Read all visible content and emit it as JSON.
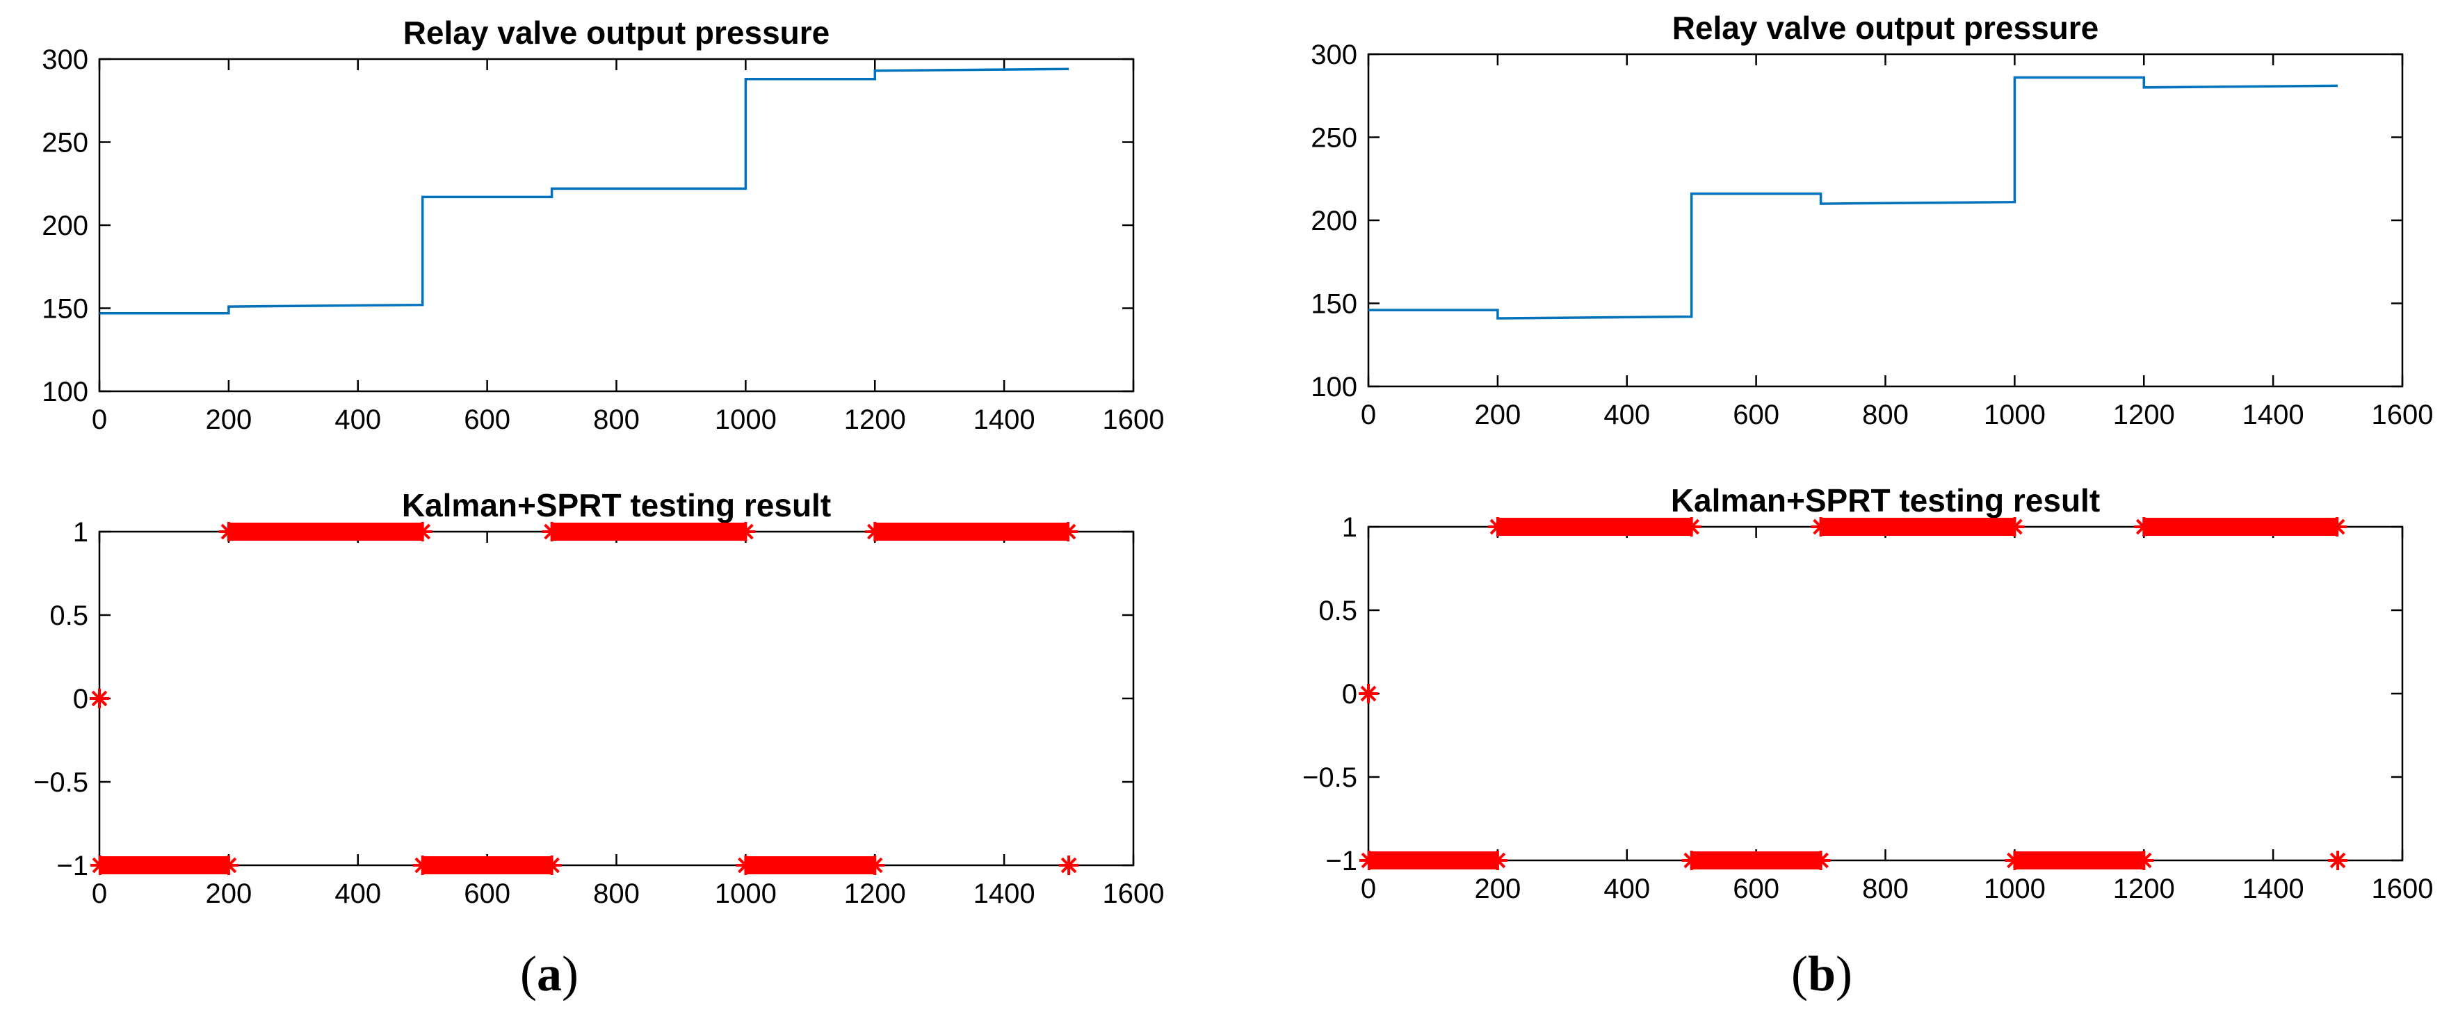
{
  "panels": [
    {
      "label_open": "(",
      "label_letter": "a",
      "label_close": ")",
      "colors": {
        "line": "#0072BD",
        "marker": "#FF0000",
        "axis": "#000000"
      },
      "chart_data": [
        {
          "type": "line",
          "title": "Relay valve output pressure",
          "xlabel": "",
          "ylabel": "",
          "xlim": [
            0,
            1600
          ],
          "ylim": [
            100,
            300
          ],
          "xticks": [
            0,
            200,
            400,
            600,
            800,
            1000,
            1200,
            1400,
            1600
          ],
          "yticks": [
            100,
            150,
            200,
            250,
            300
          ],
          "series": [
            {
              "name": "output pressure",
              "x": [
                0,
                200,
                200,
                500,
                500,
                700,
                700,
                1000,
                1000,
                1200,
                1200,
                1500
              ],
              "y": [
                147,
                147,
                151,
                152,
                217,
                217,
                222,
                222,
                288,
                288,
                293,
                294
              ]
            }
          ]
        },
        {
          "type": "scatter",
          "title": "Kalman+SPRT testing result",
          "xlabel": "",
          "ylabel": "",
          "xlim": [
            0,
            1600
          ],
          "ylim": [
            -1,
            1
          ],
          "xticks": [
            0,
            200,
            400,
            600,
            800,
            1000,
            1200,
            1400,
            1600
          ],
          "yticks": [
            -1,
            -0.5,
            0,
            0.5,
            1
          ],
          "series": [
            {
              "name": "result",
              "marker": "*",
              "points": [
                [
                  0,
                  0
                ],
                [
                  1500,
                  -1
                ]
              ],
              "runs": [
                {
                  "x_start": 1,
                  "x_end": 200,
                  "y": -1
                },
                {
                  "x_start": 200,
                  "x_end": 500,
                  "y": 1
                },
                {
                  "x_start": 500,
                  "x_end": 700,
                  "y": -1
                },
                {
                  "x_start": 700,
                  "x_end": 1000,
                  "y": 1
                },
                {
                  "x_start": 1000,
                  "x_end": 1200,
                  "y": -1
                },
                {
                  "x_start": 1200,
                  "x_end": 1499,
                  "y": 1
                }
              ]
            }
          ]
        }
      ]
    },
    {
      "label_open": "(",
      "label_letter": "b",
      "label_close": ")",
      "colors": {
        "line": "#0072BD",
        "marker": "#FF0000",
        "axis": "#000000"
      },
      "chart_data": [
        {
          "type": "line",
          "title": "Relay valve output pressure",
          "xlabel": "",
          "ylabel": "",
          "xlim": [
            0,
            1600
          ],
          "ylim": [
            100,
            300
          ],
          "xticks": [
            0,
            200,
            400,
            600,
            800,
            1000,
            1200,
            1400,
            1600
          ],
          "yticks": [
            100,
            150,
            200,
            250,
            300
          ],
          "series": [
            {
              "name": "output pressure",
              "x": [
                0,
                200,
                200,
                500,
                500,
                700,
                700,
                1000,
                1000,
                1200,
                1200,
                1500
              ],
              "y": [
                146,
                146,
                141,
                142,
                216,
                216,
                210,
                211,
                286,
                286,
                280,
                281
              ]
            }
          ]
        },
        {
          "type": "scatter",
          "title": "Kalman+SPRT testing result",
          "xlabel": "",
          "ylabel": "",
          "xlim": [
            0,
            1600
          ],
          "ylim": [
            -1,
            1
          ],
          "xticks": [
            0,
            200,
            400,
            600,
            800,
            1000,
            1200,
            1400,
            1600
          ],
          "yticks": [
            -1,
            -0.5,
            0,
            0.5,
            1
          ],
          "series": [
            {
              "name": "result",
              "marker": "*",
              "points": [
                [
                  0,
                  0
                ],
                [
                  1500,
                  -1
                ]
              ],
              "runs": [
                {
                  "x_start": 1,
                  "x_end": 200,
                  "y": -1
                },
                {
                  "x_start": 200,
                  "x_end": 500,
                  "y": 1
                },
                {
                  "x_start": 500,
                  "x_end": 700,
                  "y": -1
                },
                {
                  "x_start": 700,
                  "x_end": 1000,
                  "y": 1
                },
                {
                  "x_start": 1000,
                  "x_end": 1200,
                  "y": -1
                },
                {
                  "x_start": 1200,
                  "x_end": 1499,
                  "y": 1
                }
              ]
            }
          ]
        }
      ]
    }
  ]
}
